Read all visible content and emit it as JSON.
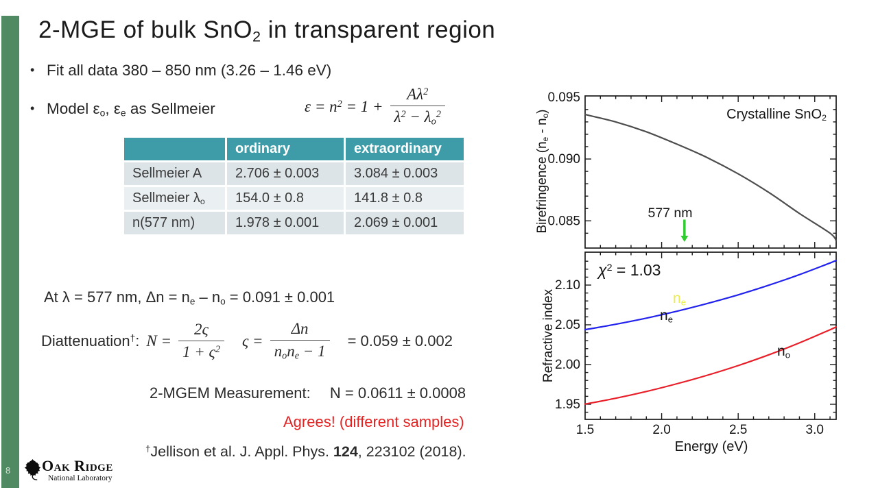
{
  "colors": {
    "sidebar_green": "#4f8a62",
    "table_teal": "#3d9ca8",
    "table_row_a": "#dce4e7",
    "table_row_b": "#eaeff1",
    "accent_red": "#e32222",
    "ne_yellow": "#ecec4e",
    "series_blue": "#2222ee",
    "series_red": "#e81e28",
    "curve_gray": "#4d4d4d",
    "arrow_green": "#2ecc2e"
  },
  "slide": {
    "page_number": "8",
    "title_html": "2-MGE of bulk SnO<sub>2</sub> in transparent region",
    "bullets": [
      "Fit all data 380 – 850 nm (3.26 – 1.46 eV)",
      "Model ε<sub>o</sub>, ε<sub>e</sub> as Sellmeier"
    ],
    "equation": {
      "lhs_html": "ε = n<sup>2</sup> = 1 +",
      "num_html": "Aλ<sup>2</sup>",
      "den_html": "λ<sup>2</sup> − λ<sub>o</sub><sup>2</sup>"
    },
    "delta_line_html": "At λ = 577 nm, Δn = n<sub>e</sub> – n<sub>o</sub> = 0.091 ± 0.001",
    "diattenuation": {
      "label_html": "Diattenuation<sup>†</sup>:",
      "n_lhs_html": "N =",
      "frac1_num_html": "2ς",
      "frac1_den_html": "1 + ς<sup>2</sup>",
      "s_lhs_html": "ς =",
      "frac2_num_html": "Δn",
      "frac2_den_html": "n<sub>o</sub>n<sub>e</sub> − 1",
      "result": "= 0.059 ± 0.002"
    },
    "measurement": {
      "label": "2-MGEM Measurement:",
      "value": "N = 0.0611 ± 0.0008"
    },
    "agrees": "Agrees! (different samples)",
    "reference_html": "<sup>†</sup>Jellison et al. J. Appl. Phys. <b>124</b>, 223102 (2018)."
  },
  "table": {
    "headers": [
      "",
      "ordinary",
      "extraordinary"
    ],
    "rows": [
      {
        "label": "Sellmeier A",
        "ordinary": "2.706 ± 0.003",
        "extraordinary": "3.084 ± 0.003"
      },
      {
        "label": "Sellmeier λ<sub>o</sub>",
        "ordinary": "154.0 ± 0.8",
        "extraordinary": "141.8 ± 0.8"
      },
      {
        "label": "n(577 nm)",
        "ordinary": "1.978 ± 0.001",
        "extraordinary": "2.069 ± 0.001"
      }
    ]
  },
  "logo": {
    "name": "Oak Ridge",
    "subtitle": "National Laboratory"
  },
  "chart_data": [
    {
      "type": "line",
      "title_html": "Crystalline SnO<sub>2</sub>",
      "ylabel_html": "Birefringence (n<sub>e</sub> - n<sub>o</sub>)",
      "xlabel": "",
      "xlim": [
        1.5,
        3.14
      ],
      "ylim": [
        0.0828,
        0.0951
      ],
      "grid": false,
      "legend": "none",
      "xticks": {
        "major": [
          2.0,
          2.5,
          3.0
        ],
        "minor_step": 0.1,
        "labels": [],
        "label_values": []
      },
      "yticks": {
        "major": [
          0.085,
          0.09,
          0.095
        ],
        "minor_step": 0.001,
        "labels": [
          "0.085",
          "0.090",
          "0.095"
        ],
        "label_values": [
          0.085,
          0.09,
          0.095
        ]
      },
      "series": [
        {
          "name": "birefringence_ne_minus_no",
          "color": "#4d4d4d",
          "x": [
            1.5,
            1.7,
            1.9,
            2.1,
            2.3,
            2.5,
            2.7,
            2.9,
            3.1,
            3.14
          ],
          "y": [
            0.0936,
            0.093,
            0.0922,
            0.0912,
            0.0901,
            0.0888,
            0.0873,
            0.0856,
            0.084,
            0.0834
          ]
        }
      ],
      "annotation": {
        "label": "577 nm",
        "x_ev": 2.149,
        "arrow_color": "#2ecc2e",
        "arrow_from_y": 0.0851,
        "arrow_to_y": 0.0833
      }
    },
    {
      "type": "line",
      "ylabel": "Refractive index",
      "xlabel": "Energy (eV)",
      "chi2_html": "<i>χ</i><sup>2</sup> = 1.03",
      "xlim": [
        1.5,
        3.14
      ],
      "ylim": [
        1.931,
        2.1414
      ],
      "grid": false,
      "legend": "inline",
      "xticks": {
        "major": [
          2.0,
          2.5,
          3.0
        ],
        "minor_step": 0.1,
        "labels": [
          "1.5",
          "2.0",
          "2.5",
          "3.0"
        ],
        "label_values": [
          1.5,
          2.0,
          2.5,
          3.0
        ]
      },
      "yticks": {
        "major": [
          1.95,
          2.0,
          2.05,
          2.1
        ],
        "minor_step": 0.01,
        "labels": [
          "1.95",
          "2.00",
          "2.05",
          "2.10"
        ],
        "label_values": [
          1.95,
          2.0,
          2.05,
          2.1
        ]
      },
      "series": [
        {
          "name": "n_e",
          "label_html": "n<sub>e</sub>",
          "color": "#2222ee",
          "x": [
            1.5,
            1.7,
            1.9,
            2.1,
            2.3,
            2.5,
            2.7,
            2.9,
            3.1,
            3.14
          ],
          "y": [
            2.0439,
            2.0507,
            2.0584,
            2.0671,
            2.0769,
            2.0877,
            2.0998,
            2.1131,
            2.1278,
            2.1309
          ]
        },
        {
          "name": "n_o",
          "label_html": "n<sub>o</sub>",
          "color": "#e81e28",
          "x": [
            1.5,
            1.7,
            1.9,
            2.1,
            2.3,
            2.5,
            2.7,
            2.9,
            3.1,
            3.14
          ],
          "y": [
            1.9502,
            1.9576,
            1.9661,
            1.9758,
            1.9866,
            1.9987,
            2.0122,
            2.0272,
            2.0438,
            2.0473
          ]
        }
      ]
    }
  ]
}
